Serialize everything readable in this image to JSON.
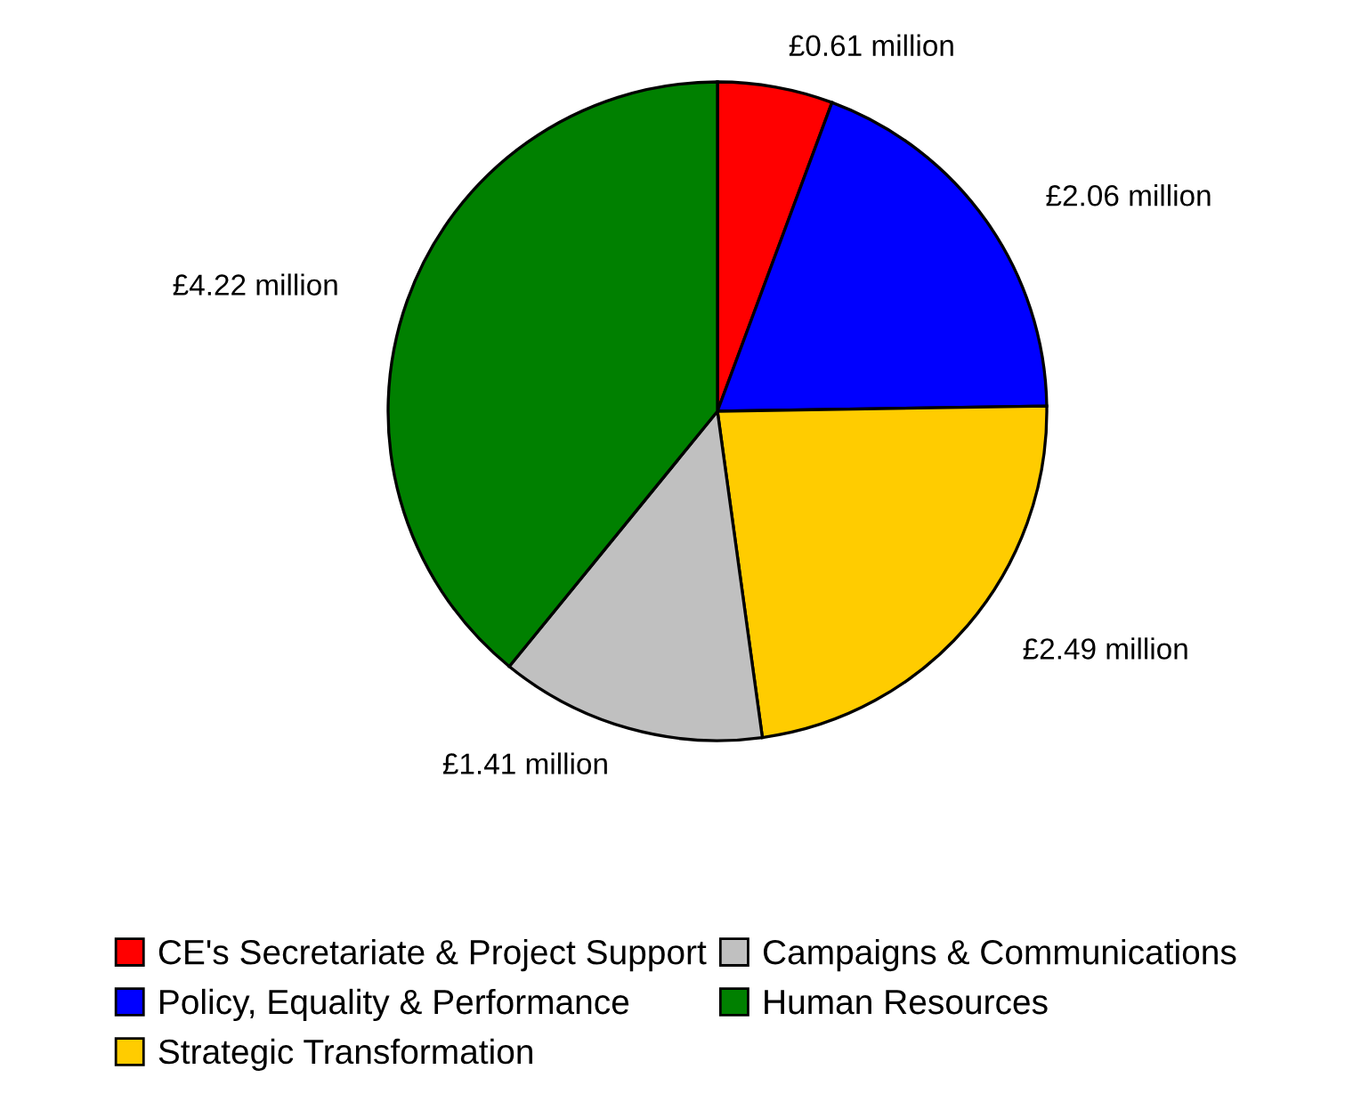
{
  "chart_data": {
    "type": "pie",
    "categories": [
      "CE's Secretariate & Project Support",
      "Policy, Equality & Performance",
      "Strategic Transformation",
      "Campaigns & Communications",
      "Human Resources"
    ],
    "values": [
      0.61,
      2.06,
      2.49,
      1.41,
      4.22
    ],
    "colors": [
      "#ff0000",
      "#0000ff",
      "#ffcc00",
      "#c0c0c0",
      "#008000"
    ],
    "value_labels": [
      "£0.61 million",
      "£2.06 million",
      "£2.49 million",
      "£1.41 million",
      "£4.22 million"
    ],
    "legend": "bottom"
  }
}
